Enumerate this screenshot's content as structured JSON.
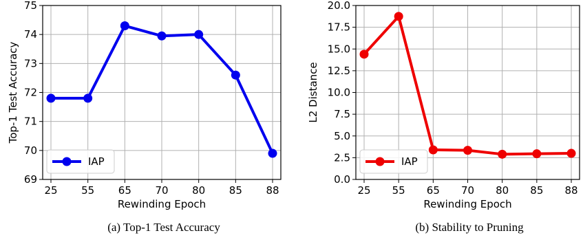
{
  "chart_data": [
    {
      "type": "line",
      "caption": "(a)  Top-1 Test Accuracy",
      "categories": [
        "25",
        "55",
        "65",
        "70",
        "80",
        "85",
        "88"
      ],
      "series": [
        {
          "name": "IAP",
          "color": "#0000ee",
          "values": [
            71.8,
            71.8,
            74.3,
            73.95,
            74.0,
            72.6,
            69.9
          ]
        }
      ],
      "xlabel": "Rewinding Epoch",
      "ylabel": "Top-1 Test Accuracy",
      "ylim": [
        69,
        75
      ],
      "yticks": [
        "69",
        "70",
        "71",
        "72",
        "73",
        "74",
        "75"
      ],
      "ytick_values": [
        69,
        70,
        71,
        72,
        73,
        74,
        75
      ],
      "grid": true,
      "legend": "lower-left"
    },
    {
      "type": "line",
      "caption": "(b)  Stability to Pruning",
      "categories": [
        "25",
        "55",
        "65",
        "70",
        "80",
        "85",
        "88"
      ],
      "series": [
        {
          "name": "IAP",
          "color": "#ee0000",
          "values": [
            14.4,
            18.75,
            3.4,
            3.35,
            2.9,
            2.95,
            3.0
          ]
        }
      ],
      "xlabel": "Rewinding Epoch",
      "ylabel": "L2 Distance",
      "ylim": [
        0,
        20
      ],
      "yticks": [
        "0.0",
        "2.5",
        "5.0",
        "7.5",
        "10.0",
        "12.5",
        "15.0",
        "17.5",
        "20.0"
      ],
      "ytick_values": [
        0,
        2.5,
        5,
        7.5,
        10,
        12.5,
        15,
        17.5,
        20
      ],
      "grid": true,
      "legend": "lower-left"
    }
  ]
}
